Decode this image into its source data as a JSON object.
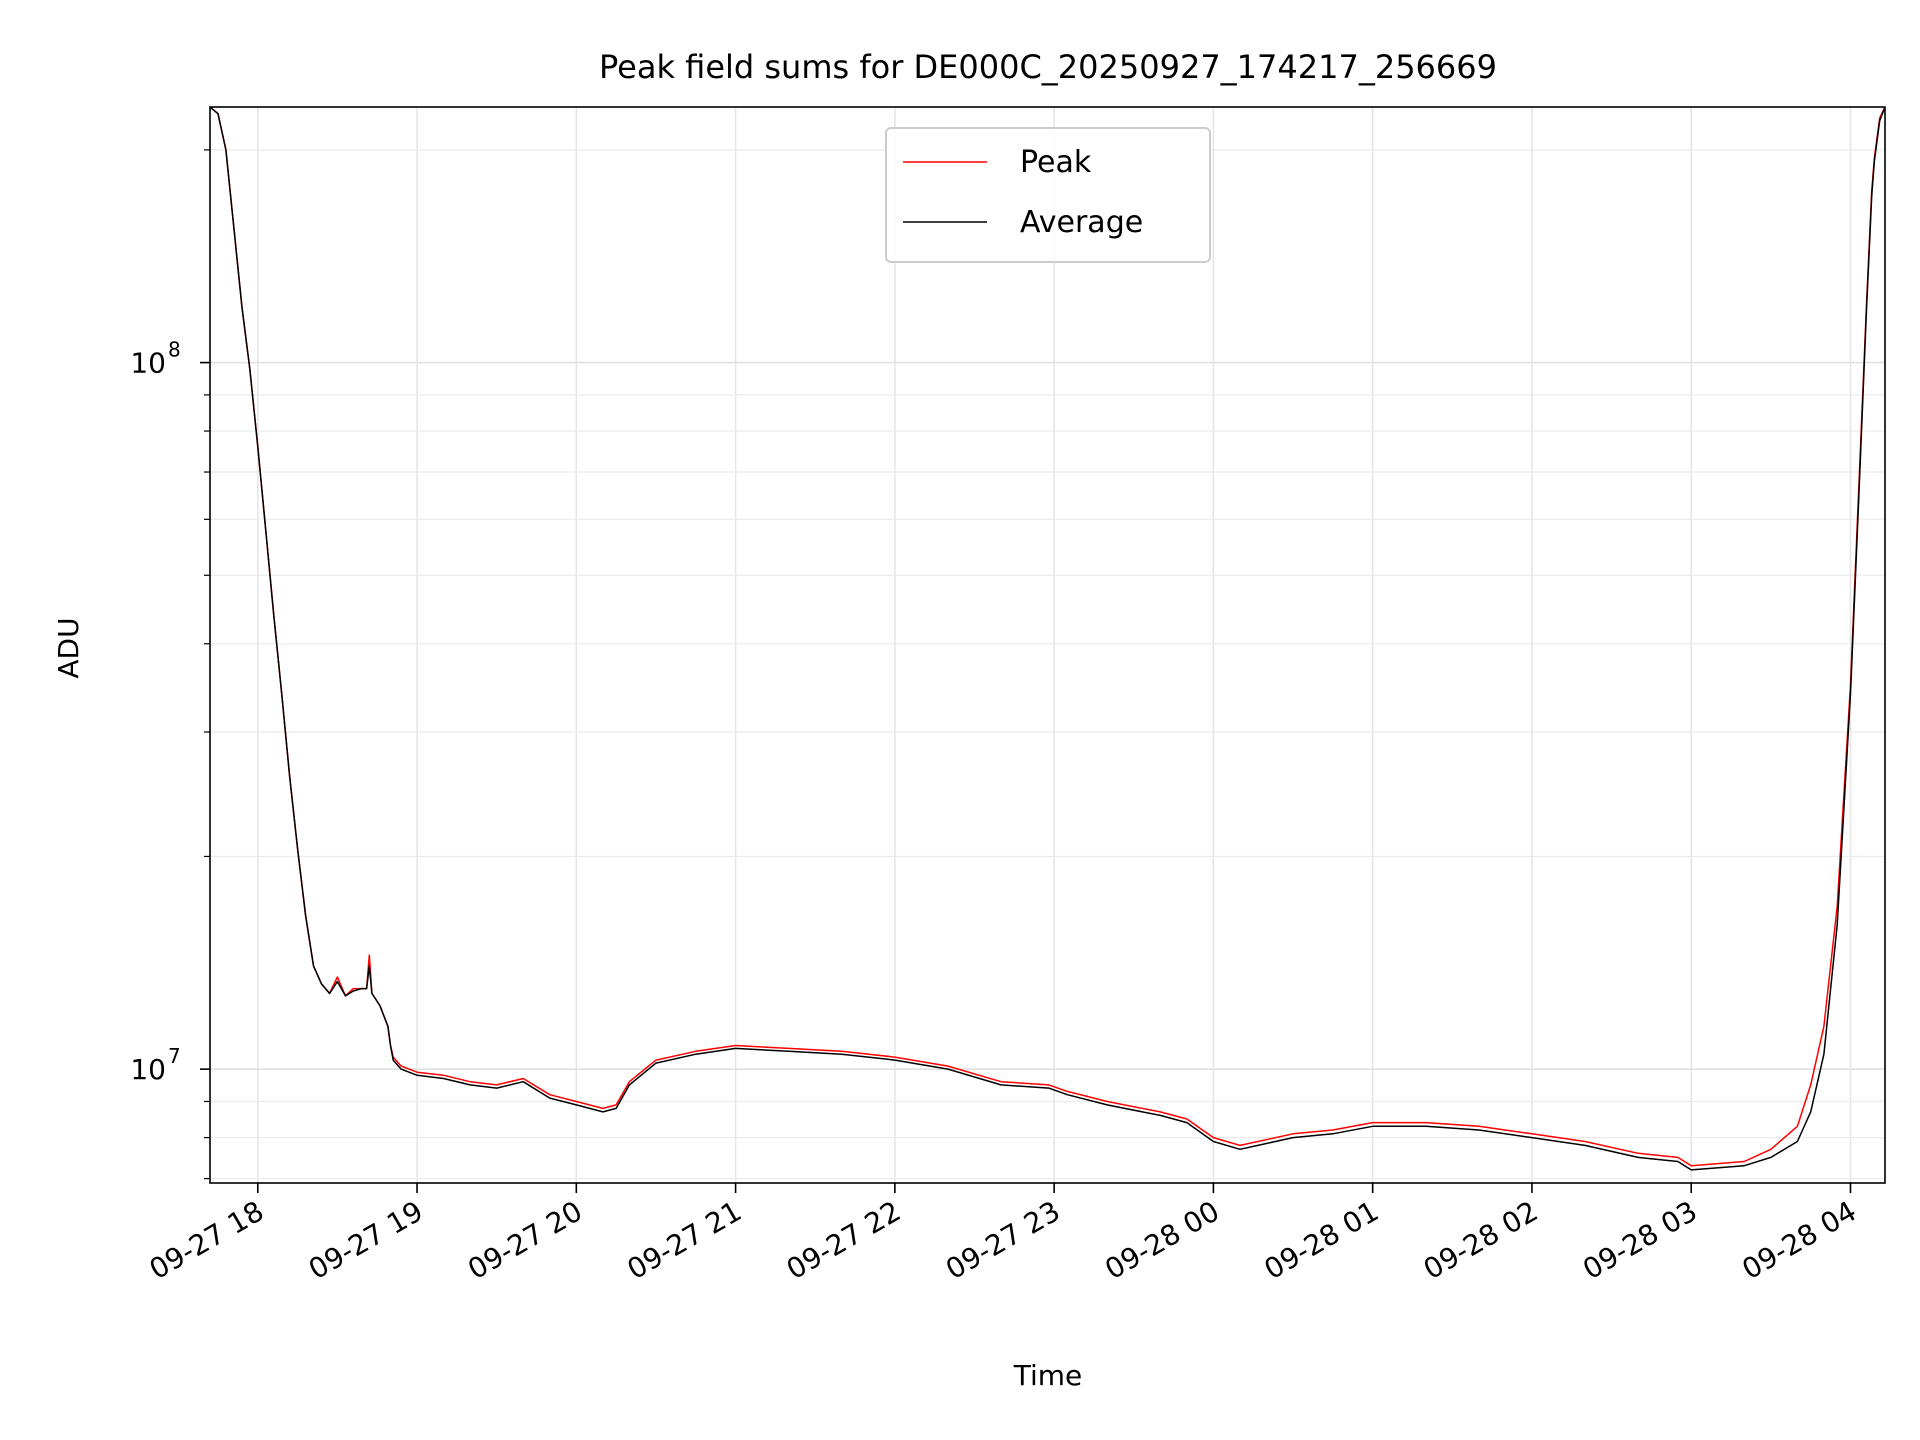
{
  "chart_data": {
    "type": "line",
    "title": "Peak field sums for DE000C_20250927_174217_256669",
    "xlabel": "Time",
    "ylabel": "ADU",
    "y_scale": "log",
    "ylim": [
      6900000,
      230000000
    ],
    "xlim": [
      "2025-09-27 17:42",
      "2025-09-28 04:13"
    ],
    "grid": true,
    "legend_position": "top-center",
    "x_tick_labels": [
      "09-27 18",
      "09-27 19",
      "09-27 20",
      "09-27 21",
      "09-27 22",
      "09-27 23",
      "09-28 00",
      "09-28 01",
      "09-28 02",
      "09-28 03",
      "09-28 04"
    ],
    "x_ticks": [
      "2025-09-27 18:00",
      "2025-09-27 19:00",
      "2025-09-27 20:00",
      "2025-09-27 21:00",
      "2025-09-27 22:00",
      "2025-09-27 23:00",
      "2025-09-28 00:00",
      "2025-09-28 01:00",
      "2025-09-28 02:00",
      "2025-09-28 03:00",
      "2025-09-28 04:00"
    ],
    "y_tick_labels": [
      {
        "base": "10",
        "exp": "7",
        "value": 10000000
      },
      {
        "base": "10",
        "exp": "8",
        "value": 100000000
      }
    ],
    "series": [
      {
        "name": "Peak",
        "color": "#ff0000",
        "x": [
          "2025-09-27 17:42",
          "2025-09-27 17:45",
          "2025-09-27 17:48",
          "2025-09-27 17:51",
          "2025-09-27 17:54",
          "2025-09-27 17:57",
          "2025-09-27 18:00",
          "2025-09-27 18:03",
          "2025-09-27 18:06",
          "2025-09-27 18:09",
          "2025-09-27 18:12",
          "2025-09-27 18:15",
          "2025-09-27 18:18",
          "2025-09-27 18:21",
          "2025-09-27 18:24",
          "2025-09-27 18:27",
          "2025-09-27 18:30",
          "2025-09-27 18:33",
          "2025-09-27 18:36",
          "2025-09-27 18:39",
          "2025-09-27 18:41",
          "2025-09-27 18:42",
          "2025-09-27 18:43",
          "2025-09-27 18:46",
          "2025-09-27 18:49",
          "2025-09-27 18:50",
          "2025-09-27 18:51",
          "2025-09-27 18:54",
          "2025-09-27 18:57",
          "2025-09-27 19:00",
          "2025-09-27 19:10",
          "2025-09-27 19:20",
          "2025-09-27 19:30",
          "2025-09-27 19:40",
          "2025-09-27 19:50",
          "2025-09-27 20:00",
          "2025-09-27 20:10",
          "2025-09-27 20:15",
          "2025-09-27 20:20",
          "2025-09-27 20:30",
          "2025-09-27 20:45",
          "2025-09-27 21:00",
          "2025-09-27 21:20",
          "2025-09-27 21:40",
          "2025-09-27 22:00",
          "2025-09-27 22:20",
          "2025-09-27 22:40",
          "2025-09-27 22:58",
          "2025-09-27 23:05",
          "2025-09-27 23:20",
          "2025-09-27 23:40",
          "2025-09-27 23:50",
          "2025-09-28 00:00",
          "2025-09-28 00:10",
          "2025-09-28 00:30",
          "2025-09-28 00:45",
          "2025-09-28 01:00",
          "2025-09-28 01:20",
          "2025-09-28 01:40",
          "2025-09-28 02:00",
          "2025-09-28 02:20",
          "2025-09-28 02:40",
          "2025-09-28 02:55",
          "2025-09-28 03:00",
          "2025-09-28 03:20",
          "2025-09-28 03:30",
          "2025-09-28 03:40",
          "2025-09-28 03:45",
          "2025-09-28 03:50",
          "2025-09-28 03:55",
          "2025-09-28 04:00",
          "2025-09-28 04:03",
          "2025-09-28 04:06",
          "2025-09-28 04:08",
          "2025-09-28 04:09",
          "2025-09-28 04:11",
          "2025-09-28 04:13"
        ],
        "y": [
          230000000,
          225000000,
          200000000,
          155000000,
          120000000,
          98000000,
          76000000,
          58000000,
          44000000,
          34000000,
          26000000,
          20500000,
          16500000,
          14000000,
          13200000,
          12800000,
          13500000,
          12700000,
          13000000,
          13000000,
          13000000,
          14500000,
          12800000,
          12300000,
          11500000,
          10800000,
          10400000,
          10100000,
          10000000,
          9900000,
          9800000,
          9600000,
          9500000,
          9700000,
          9200000,
          9000000,
          8800000,
          8900000,
          9600000,
          10300000,
          10600000,
          10800000,
          10700000,
          10600000,
          10400000,
          10100000,
          9600000,
          9500000,
          9300000,
          9000000,
          8700000,
          8500000,
          8000000,
          7800000,
          8100000,
          8200000,
          8400000,
          8400000,
          8300000,
          8100000,
          7900000,
          7600000,
          7500000,
          7300000,
          7400000,
          7700000,
          8300000,
          9500000,
          11500000,
          17000000,
          35000000,
          65000000,
          120000000,
          175000000,
          195000000,
          222000000,
          230000000
        ]
      },
      {
        "name": "Average",
        "color": "#000000",
        "x": [
          "2025-09-27 17:42",
          "2025-09-27 17:45",
          "2025-09-27 17:48",
          "2025-09-27 17:51",
          "2025-09-27 17:54",
          "2025-09-27 17:57",
          "2025-09-27 18:00",
          "2025-09-27 18:03",
          "2025-09-27 18:06",
          "2025-09-27 18:09",
          "2025-09-27 18:12",
          "2025-09-27 18:15",
          "2025-09-27 18:18",
          "2025-09-27 18:21",
          "2025-09-27 18:24",
          "2025-09-27 18:27",
          "2025-09-27 18:30",
          "2025-09-27 18:33",
          "2025-09-27 18:36",
          "2025-09-27 18:39",
          "2025-09-27 18:41",
          "2025-09-27 18:42",
          "2025-09-27 18:43",
          "2025-09-27 18:46",
          "2025-09-27 18:49",
          "2025-09-27 18:50",
          "2025-09-27 18:51",
          "2025-09-27 18:54",
          "2025-09-27 18:57",
          "2025-09-27 19:00",
          "2025-09-27 19:10",
          "2025-09-27 19:20",
          "2025-09-27 19:30",
          "2025-09-27 19:40",
          "2025-09-27 19:50",
          "2025-09-27 20:00",
          "2025-09-27 20:10",
          "2025-09-27 20:15",
          "2025-09-27 20:20",
          "2025-09-27 20:30",
          "2025-09-27 20:45",
          "2025-09-27 21:00",
          "2025-09-27 21:20",
          "2025-09-27 21:40",
          "2025-09-27 22:00",
          "2025-09-27 22:20",
          "2025-09-27 22:40",
          "2025-09-27 22:58",
          "2025-09-27 23:05",
          "2025-09-27 23:20",
          "2025-09-27 23:40",
          "2025-09-27 23:50",
          "2025-09-28 00:00",
          "2025-09-28 00:10",
          "2025-09-28 00:30",
          "2025-09-28 00:45",
          "2025-09-28 01:00",
          "2025-09-28 01:20",
          "2025-09-28 01:40",
          "2025-09-28 02:00",
          "2025-09-28 02:20",
          "2025-09-28 02:40",
          "2025-09-28 02:55",
          "2025-09-28 03:00",
          "2025-09-28 03:20",
          "2025-09-28 03:30",
          "2025-09-28 03:40",
          "2025-09-28 03:45",
          "2025-09-28 03:50",
          "2025-09-28 03:55",
          "2025-09-28 04:00",
          "2025-09-28 04:03",
          "2025-09-28 04:06",
          "2025-09-28 04:08",
          "2025-09-28 04:09",
          "2025-09-28 04:11",
          "2025-09-28 04:13"
        ],
        "y": [
          230000000,
          225000000,
          200000000,
          155000000,
          120000000,
          98000000,
          76000000,
          58000000,
          44000000,
          34000000,
          26000000,
          20500000,
          16500000,
          14000000,
          13200000,
          12800000,
          13300000,
          12700000,
          12900000,
          13000000,
          13000000,
          14000000,
          12800000,
          12300000,
          11500000,
          10800000,
          10300000,
          10000000,
          9900000,
          9800000,
          9700000,
          9500000,
          9400000,
          9600000,
          9100000,
          8900000,
          8700000,
          8800000,
          9500000,
          10200000,
          10500000,
          10700000,
          10600000,
          10500000,
          10300000,
          10000000,
          9500000,
          9400000,
          9200000,
          8900000,
          8600000,
          8400000,
          7900000,
          7700000,
          8000000,
          8100000,
          8300000,
          8300000,
          8200000,
          8000000,
          7800000,
          7500000,
          7400000,
          7200000,
          7300000,
          7500000,
          7900000,
          8700000,
          10500000,
          16000000,
          34000000,
          63000000,
          118000000,
          172000000,
          193000000,
          220000000,
          230000000
        ]
      }
    ]
  }
}
